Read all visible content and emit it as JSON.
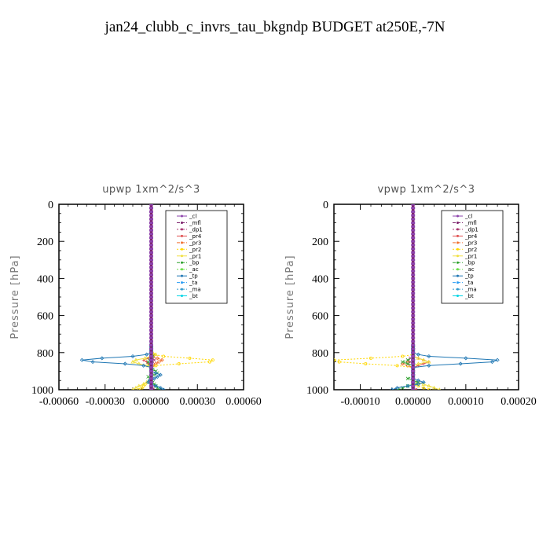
{
  "title": "jan24_clubb_c_invrs_tau_bkgndp  BUDGET at250E,-7N",
  "chart_data": [
    {
      "type": "line",
      "title": "upwp   1xm^2/s^3",
      "xlabel": "",
      "ylabel": "Pressure [hPa]",
      "xlim": [
        -0.0006,
        0.0006
      ],
      "ylim": [
        1000,
        0
      ],
      "xticks": [
        "-0.00060",
        "-0.00030",
        "0.00000",
        "0.00030",
        "0.00060"
      ],
      "xtick_values": [
        -0.0006,
        -0.0003,
        0,
        0.0003,
        0.0006
      ],
      "yticks": [
        "0",
        "200",
        "400",
        "600",
        "800",
        "1000"
      ],
      "ytick_values": [
        0,
        200,
        400,
        600,
        800,
        1000
      ],
      "legend_position": "top-right",
      "pressure": [
        1000,
        990,
        980,
        970,
        960,
        950,
        940,
        930,
        920,
        910,
        900,
        890,
        880,
        870,
        860,
        850,
        840,
        830,
        820,
        810,
        800,
        790,
        780,
        770,
        760
      ],
      "series": [
        {
          "name": "_cl",
          "color": "#8e44ad",
          "values": [
            0,
            0,
            0,
            0,
            0,
            0,
            0,
            0,
            0,
            0,
            0,
            0,
            0,
            0,
            0,
            0,
            0,
            0,
            0,
            0,
            0,
            0,
            0,
            0,
            0
          ]
        },
        {
          "name": "_mfl",
          "color": "#7b1f6a",
          "values": [
            0,
            0,
            0,
            0,
            0,
            0,
            0,
            0,
            0,
            0,
            0,
            0,
            0,
            0,
            0,
            0,
            0,
            0,
            0,
            0,
            0,
            0,
            0,
            0,
            0
          ]
        },
        {
          "name": "_dp1",
          "color": "#a8326e",
          "values": [
            1e-05,
            1e-05,
            0,
            0,
            0,
            0,
            0,
            0,
            0,
            0,
            0,
            0,
            0,
            0,
            0,
            1e-05,
            2e-05,
            1e-05,
            0,
            0,
            0,
            0,
            0,
            0,
            0
          ]
        },
        {
          "name": "_pr4",
          "color": "#e05050",
          "values": [
            0,
            0,
            0,
            0,
            0,
            0,
            0,
            0,
            0,
            0,
            0,
            0,
            0,
            -1e-05,
            -2e-05,
            -3e-05,
            -5e-05,
            -2e-05,
            0,
            1e-05,
            0,
            0,
            0,
            0,
            0
          ]
        },
        {
          "name": "_pr3",
          "color": "#f07030",
          "values": [
            0,
            0,
            0,
            0,
            0,
            0,
            0,
            0,
            0,
            0,
            0,
            0,
            0,
            1e-05,
            3e-05,
            5e-05,
            7e-05,
            4e-05,
            1e-05,
            0,
            0,
            0,
            0,
            0,
            0
          ]
        },
        {
          "name": "_pr2",
          "color": "#ffd700",
          "values": [
            -8e-05,
            -6e-05,
            -5e-05,
            -4e-05,
            -2e-05,
            0,
            0,
            0,
            0,
            0,
            0,
            0,
            0,
            3e-05,
            0.00018,
            0.00038,
            0.0004,
            0.00025,
            8e-05,
            2e-05,
            0,
            0,
            0,
            0,
            0
          ]
        },
        {
          "name": "_pr1",
          "color": "#f0e040",
          "values": [
            -0.00012,
            -0.0001,
            -8e-05,
            -5e-05,
            -3e-05,
            -1e-05,
            0,
            0,
            0,
            0,
            0,
            0,
            0,
            -2e-05,
            -8e-05,
            -0.00012,
            -0.0001,
            -4e-05,
            0,
            3e-05,
            1e-05,
            0,
            0,
            0,
            0
          ]
        },
        {
          "name": "_bp",
          "color": "#2ca02c",
          "values": [
            5e-05,
            4e-05,
            3e-05,
            2e-05,
            1e-05,
            0,
            -1e-05,
            -2e-05,
            2e-05,
            4e-05,
            3e-05,
            1e-05,
            0,
            0,
            -1e-05,
            -2e-05,
            -1e-05,
            0,
            1e-05,
            0,
            0,
            0,
            0,
            0,
            0
          ]
        },
        {
          "name": "_ac",
          "color": "#66dd44",
          "values": [
            0,
            0,
            0,
            0,
            0,
            0,
            0,
            0,
            0,
            0,
            0,
            0,
            0,
            0,
            0,
            0,
            0,
            0,
            0,
            0,
            0,
            0,
            0,
            0,
            0
          ]
        },
        {
          "name": "_tp",
          "color": "#1f77b4",
          "values": [
            8e-05,
            6e-05,
            3e-05,
            0,
            -2e-05,
            -1e-05,
            2e-05,
            4e-05,
            6e-05,
            3e-05,
            0,
            0,
            0,
            -5e-05,
            -0.00017,
            -0.00038,
            -0.00045,
            -0.00032,
            -0.00012,
            -3e-05,
            0,
            0,
            0,
            0,
            0
          ]
        },
        {
          "name": "_ta",
          "color": "#2a9df4",
          "values": [
            0,
            0,
            0,
            0,
            0,
            0,
            0,
            0,
            0,
            0,
            0,
            0,
            0,
            0,
            0,
            0,
            0,
            0,
            0,
            0,
            0,
            0,
            0,
            0,
            0
          ]
        },
        {
          "name": "_ma",
          "color": "#3399cc",
          "values": [
            0,
            0,
            0,
            0,
            0,
            0,
            0,
            0,
            0,
            0,
            0,
            0,
            0,
            0,
            0,
            0,
            0,
            0,
            0,
            0,
            0,
            0,
            0,
            0,
            0
          ]
        },
        {
          "name": "_bt",
          "color": "#00d5e5",
          "values": [
            0,
            0,
            0,
            0,
            0,
            0,
            0,
            0,
            0,
            0,
            0,
            0,
            0,
            0,
            0,
            0,
            0,
            0,
            0,
            0,
            0,
            0,
            0,
            0,
            0
          ]
        }
      ]
    },
    {
      "type": "line",
      "title": "vpwp   1xm^2/s^3",
      "xlabel": "",
      "ylabel": "Pressure [hPa]",
      "xlim": [
        -0.00015,
        0.0002
      ],
      "ylim": [
        1000,
        0
      ],
      "xticks": [
        "-0.00010",
        "0.00000",
        "0.00010",
        "0.00020"
      ],
      "xtick_values": [
        -0.0001,
        0,
        0.0001,
        0.0002
      ],
      "yticks": [
        "0",
        "200",
        "400",
        "600",
        "800",
        "1000"
      ],
      "ytick_values": [
        0,
        200,
        400,
        600,
        800,
        1000
      ],
      "legend_position": "top-right",
      "pressure": [
        1000,
        990,
        980,
        970,
        960,
        950,
        940,
        930,
        920,
        910,
        900,
        890,
        880,
        870,
        860,
        850,
        840,
        830,
        820,
        810,
        800,
        790,
        780,
        770,
        760
      ],
      "series": [
        {
          "name": "_cl",
          "color": "#8e44ad",
          "values": [
            0,
            0,
            0,
            0,
            0,
            0,
            0,
            0,
            0,
            0,
            0,
            0,
            0,
            0,
            0,
            0,
            0,
            0,
            0,
            0,
            0,
            0,
            0,
            0,
            0
          ]
        },
        {
          "name": "_mfl",
          "color": "#7b1f6a",
          "values": [
            0,
            0,
            0,
            0,
            0,
            0,
            0,
            0,
            0,
            0,
            0,
            0,
            0,
            0,
            0,
            0,
            0,
            0,
            0,
            0,
            0,
            0,
            0,
            0,
            0
          ]
        },
        {
          "name": "_dp1",
          "color": "#a8326e",
          "values": [
            5e-06,
            0,
            0,
            0,
            0,
            0,
            0,
            0,
            0,
            0,
            0,
            0,
            0,
            0,
            0,
            -5e-06,
            -1e-05,
            -5e-06,
            0,
            0,
            0,
            0,
            0,
            0,
            0
          ]
        },
        {
          "name": "_pr4",
          "color": "#e05050",
          "values": [
            5e-06,
            0,
            0,
            0,
            0,
            0,
            0,
            0,
            0,
            0,
            0,
            0,
            0,
            1e-05,
            2e-05,
            3e-05,
            2e-05,
            1e-05,
            0,
            0,
            0,
            0,
            0,
            0,
            0
          ]
        },
        {
          "name": "_pr3",
          "color": "#f07030",
          "values": [
            0,
            0,
            0,
            0,
            0,
            0,
            0,
            0,
            0,
            0,
            0,
            0,
            0,
            -1e-05,
            -2e-05,
            -1e-05,
            0,
            0,
            0,
            0,
            0,
            0,
            0,
            0,
            0
          ]
        },
        {
          "name": "_pr2",
          "color": "#ffd700",
          "values": [
            3e-05,
            2e-05,
            1e-05,
            5e-06,
            0,
            0,
            0,
            0,
            0,
            0,
            0,
            0,
            0,
            -3e-05,
            -9e-05,
            -0.00014,
            -0.00015,
            -8e-05,
            -2e-05,
            0,
            0,
            0,
            0,
            0,
            0
          ]
        },
        {
          "name": "_pr1",
          "color": "#f0e040",
          "values": [
            5e-05,
            4e-05,
            3e-05,
            2e-05,
            1e-05,
            0,
            0,
            0,
            0,
            0,
            0,
            0,
            0,
            0,
            1e-05,
            3e-05,
            2e-05,
            1e-05,
            0,
            0,
            0,
            0,
            0,
            0,
            0
          ]
        },
        {
          "name": "_bp",
          "color": "#2ca02c",
          "values": [
            -3e-05,
            -2e-05,
            -1e-05,
            0,
            1e-05,
            0,
            -1e-05,
            0,
            0,
            0,
            0,
            0,
            0,
            0,
            -1e-05,
            -2e-05,
            -1e-05,
            0,
            0,
            0,
            0,
            0,
            0,
            0,
            0
          ]
        },
        {
          "name": "_ac",
          "color": "#66dd44",
          "values": [
            0,
            0,
            0,
            0,
            0,
            0,
            0,
            0,
            0,
            0,
            0,
            0,
            0,
            0,
            0,
            0,
            0,
            0,
            0,
            0,
            0,
            0,
            0,
            0,
            0
          ]
        },
        {
          "name": "_tp",
          "color": "#1f77b4",
          "values": [
            -4e-05,
            -3e-05,
            -1e-05,
            1e-05,
            2e-05,
            1e-05,
            0,
            0,
            0,
            0,
            0,
            0,
            0,
            3e-05,
            9e-05,
            0.00015,
            0.00016,
            0.0001,
            3e-05,
            1e-05,
            0,
            0,
            0,
            0,
            0
          ]
        },
        {
          "name": "_ta",
          "color": "#2a9df4",
          "values": [
            0,
            0,
            0,
            0,
            0,
            0,
            0,
            0,
            0,
            0,
            0,
            0,
            0,
            0,
            0,
            0,
            0,
            0,
            0,
            0,
            0,
            0,
            0,
            0,
            0
          ]
        },
        {
          "name": "_ma",
          "color": "#3399cc",
          "values": [
            0,
            0,
            0,
            0,
            0,
            0,
            0,
            0,
            0,
            0,
            0,
            0,
            0,
            0,
            0,
            0,
            0,
            0,
            0,
            0,
            0,
            0,
            0,
            0,
            0
          ]
        },
        {
          "name": "_bt",
          "color": "#00d5e5",
          "values": [
            0,
            0,
            0,
            0,
            0,
            0,
            0,
            0,
            0,
            0,
            0,
            0,
            0,
            0,
            0,
            0,
            0,
            0,
            0,
            0,
            0,
            0,
            0,
            0,
            0
          ]
        }
      ]
    }
  ]
}
